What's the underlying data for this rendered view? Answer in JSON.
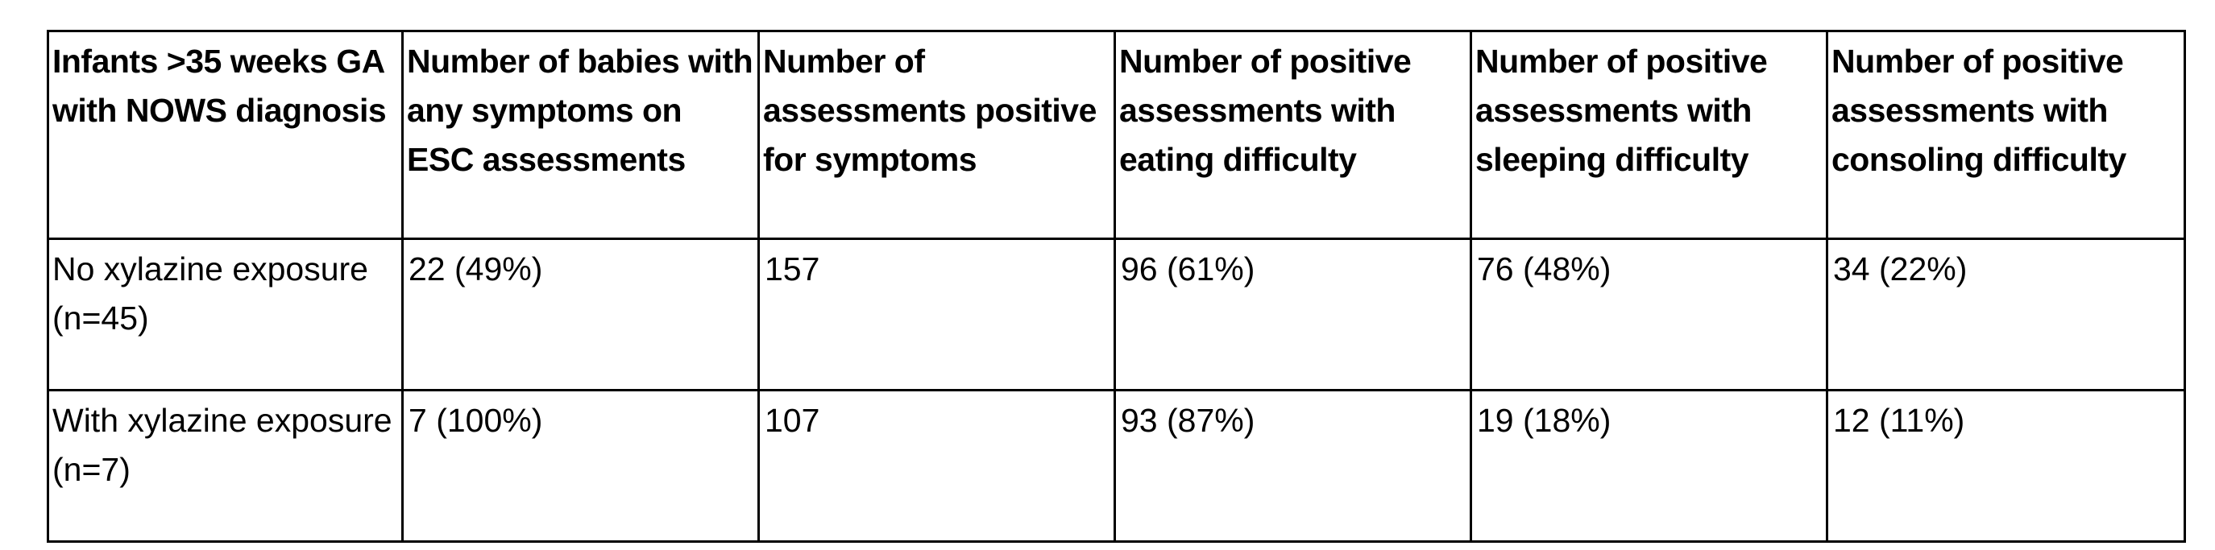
{
  "table": {
    "headers": [
      "Infants >35 weeks GA with NOWS diagnosis",
      "Number of babies with any symptoms on ESC assessments",
      "Number of assessments positive for symptoms",
      "Number of positive assessments with eating difficulty",
      "Number of positive assessments with sleeping difficulty",
      "Number of positive assessments with consoling difficulty"
    ],
    "rows": [
      [
        "No xylazine exposure (n=45)",
        "22 (49%)",
        "157",
        "96 (61%)",
        "76 (48%)",
        "34 (22%)"
      ],
      [
        "With xylazine exposure (n=7)",
        "7 (100%)",
        "107",
        "93 (87%)",
        "19 (18%)",
        "12 (11%)"
      ]
    ]
  }
}
